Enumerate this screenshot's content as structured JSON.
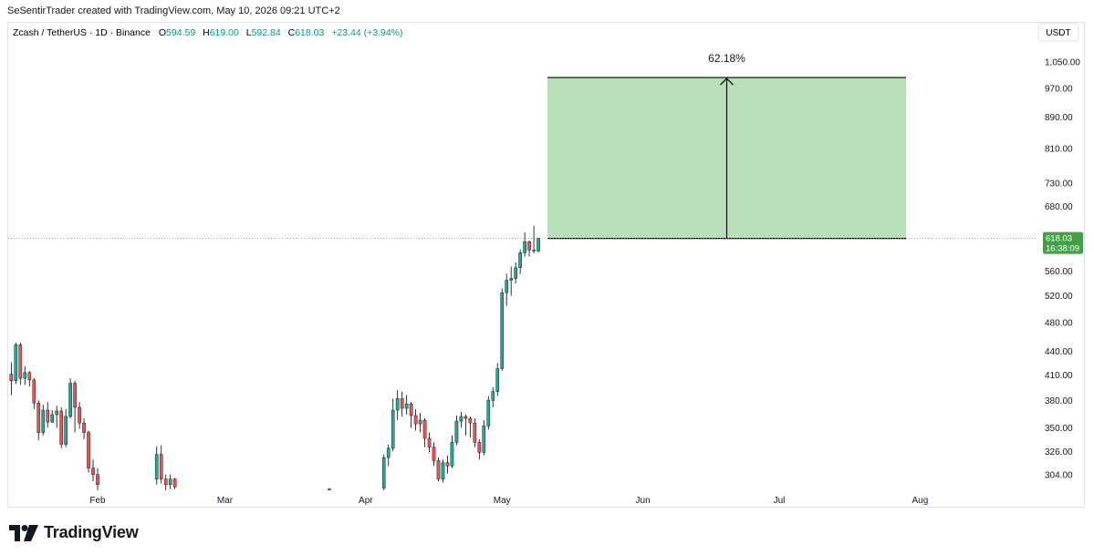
{
  "header": {
    "credit": "SeSentirTrader created with TradingView.com, May 10, 2026 09:21 UTC+2"
  },
  "symbol_bar": {
    "symbol": "Zcash / TetherUS · 1D · Binance",
    "o_label": "O",
    "o_value": "594.59",
    "h_label": "H",
    "h_value": "619.00",
    "l_label": "L",
    "l_value": "592.84",
    "c_label": "C",
    "c_value": "618.03",
    "change": "+23.44 (+3.94%)"
  },
  "currency_badge": "USDT",
  "price_tag": {
    "price": "618.03",
    "countdown": "16:38:09"
  },
  "measure": {
    "label": "62.18%",
    "from": 618.03,
    "to": 1002
  },
  "logo": {
    "text": "TradingView"
  },
  "colors": {
    "up": "#26a69a",
    "down": "#ef5350",
    "wick": "#000000",
    "measure_fill": "#b9dfb9",
    "price_tag": "#43a047"
  },
  "chart_data": {
    "type": "candlestick",
    "scale": "log",
    "ylim": [
      290,
      1085
    ],
    "x_axis_labels": [
      "Feb",
      "Mar",
      "Apr",
      "May",
      "Jun",
      "Jul",
      "Aug"
    ],
    "y_axis_labels": [
      "1,050.00",
      "970.00",
      "890.00",
      "810.00",
      "730.00",
      "680.00",
      "560.00",
      "520.00",
      "480.00",
      "440.00",
      "410.00",
      "380.00",
      "350.00",
      "326.00",
      "304.00"
    ],
    "last_price": 618.03,
    "candles": [
      {
        "date": "2026-01-13",
        "o": 411,
        "h": 426,
        "l": 386,
        "c": 403
      },
      {
        "date": "2026-01-14",
        "o": 403,
        "h": 452,
        "l": 399,
        "c": 449
      },
      {
        "date": "2026-01-15",
        "o": 449,
        "h": 452,
        "l": 398,
        "c": 406
      },
      {
        "date": "2026-01-16",
        "o": 406,
        "h": 421,
        "l": 398,
        "c": 413
      },
      {
        "date": "2026-01-17",
        "o": 413,
        "h": 415,
        "l": 396,
        "c": 404
      },
      {
        "date": "2026-01-18",
        "o": 404,
        "h": 406,
        "l": 370,
        "c": 377
      },
      {
        "date": "2026-01-19",
        "o": 377,
        "h": 380,
        "l": 337,
        "c": 345
      },
      {
        "date": "2026-01-20",
        "o": 345,
        "h": 375,
        "l": 342,
        "c": 369
      },
      {
        "date": "2026-01-21",
        "o": 369,
        "h": 378,
        "l": 350,
        "c": 356
      },
      {
        "date": "2026-01-22",
        "o": 356,
        "h": 369,
        "l": 355,
        "c": 364
      },
      {
        "date": "2026-01-23",
        "o": 364,
        "h": 374,
        "l": 350,
        "c": 368
      },
      {
        "date": "2026-01-24",
        "o": 368,
        "h": 372,
        "l": 329,
        "c": 333
      },
      {
        "date": "2026-01-25",
        "o": 333,
        "h": 370,
        "l": 330,
        "c": 362
      },
      {
        "date": "2026-01-26",
        "o": 362,
        "h": 406,
        "l": 360,
        "c": 400
      },
      {
        "date": "2026-01-27",
        "o": 400,
        "h": 403,
        "l": 345,
        "c": 372
      },
      {
        "date": "2026-01-28",
        "o": 372,
        "h": 378,
        "l": 349,
        "c": 355
      },
      {
        "date": "2026-01-29",
        "o": 355,
        "h": 360,
        "l": 338,
        "c": 345
      },
      {
        "date": "2026-01-30",
        "o": 345,
        "h": 347,
        "l": 306,
        "c": 310
      },
      {
        "date": "2026-01-31",
        "o": 310,
        "h": 318,
        "l": 298,
        "c": 304
      },
      {
        "date": "2026-02-01",
        "o": 304,
        "h": 310,
        "l": 290,
        "c": 295
      },
      {
        "date": "2026-02-14",
        "o": 300,
        "h": 331,
        "l": 295,
        "c": 323
      },
      {
        "date": "2026-02-15",
        "o": 323,
        "h": 332,
        "l": 296,
        "c": 300
      },
      {
        "date": "2026-02-16",
        "o": 300,
        "h": 304,
        "l": 290,
        "c": 295
      },
      {
        "date": "2026-02-17",
        "o": 295,
        "h": 304,
        "l": 291,
        "c": 300
      },
      {
        "date": "2026-02-18",
        "o": 300,
        "h": 301,
        "l": 291,
        "c": 293
      },
      {
        "date": "2026-03-24",
        "o": 291,
        "h": 292,
        "l": 290,
        "c": 291
      },
      {
        "date": "2026-04-05",
        "o": 292,
        "h": 323,
        "l": 290,
        "c": 320
      },
      {
        "date": "2026-04-06",
        "o": 320,
        "h": 333,
        "l": 312,
        "c": 329
      },
      {
        "date": "2026-04-07",
        "o": 329,
        "h": 382,
        "l": 326,
        "c": 369
      },
      {
        "date": "2026-04-08",
        "o": 369,
        "h": 392,
        "l": 358,
        "c": 382
      },
      {
        "date": "2026-04-09",
        "o": 382,
        "h": 390,
        "l": 362,
        "c": 371
      },
      {
        "date": "2026-04-10",
        "o": 371,
        "h": 386,
        "l": 364,
        "c": 376
      },
      {
        "date": "2026-04-11",
        "o": 376,
        "h": 378,
        "l": 350,
        "c": 363
      },
      {
        "date": "2026-04-12",
        "o": 363,
        "h": 370,
        "l": 347,
        "c": 354
      },
      {
        "date": "2026-04-13",
        "o": 354,
        "h": 366,
        "l": 345,
        "c": 358
      },
      {
        "date": "2026-04-14",
        "o": 358,
        "h": 360,
        "l": 330,
        "c": 339
      },
      {
        "date": "2026-04-15",
        "o": 339,
        "h": 345,
        "l": 325,
        "c": 330
      },
      {
        "date": "2026-04-16",
        "o": 330,
        "h": 335,
        "l": 312,
        "c": 317
      },
      {
        "date": "2026-04-17",
        "o": 317,
        "h": 320,
        "l": 298,
        "c": 300
      },
      {
        "date": "2026-04-18",
        "o": 300,
        "h": 318,
        "l": 297,
        "c": 315
      },
      {
        "date": "2026-04-19",
        "o": 315,
        "h": 322,
        "l": 305,
        "c": 312
      },
      {
        "date": "2026-04-20",
        "o": 312,
        "h": 342,
        "l": 310,
        "c": 335
      },
      {
        "date": "2026-04-21",
        "o": 335,
        "h": 363,
        "l": 332,
        "c": 357
      },
      {
        "date": "2026-04-22",
        "o": 357,
        "h": 367,
        "l": 350,
        "c": 362
      },
      {
        "date": "2026-04-23",
        "o": 362,
        "h": 364,
        "l": 342,
        "c": 360
      },
      {
        "date": "2026-04-24",
        "o": 360,
        "h": 362,
        "l": 340,
        "c": 355
      },
      {
        "date": "2026-04-25",
        "o": 355,
        "h": 360,
        "l": 330,
        "c": 335
      },
      {
        "date": "2026-04-26",
        "o": 335,
        "h": 338,
        "l": 318,
        "c": 325
      },
      {
        "date": "2026-04-27",
        "o": 325,
        "h": 358,
        "l": 322,
        "c": 352
      },
      {
        "date": "2026-04-28",
        "o": 352,
        "h": 385,
        "l": 348,
        "c": 380
      },
      {
        "date": "2026-04-29",
        "o": 380,
        "h": 395,
        "l": 372,
        "c": 390
      },
      {
        "date": "2026-04-30",
        "o": 390,
        "h": 425,
        "l": 385,
        "c": 418
      },
      {
        "date": "2026-05-01",
        "o": 418,
        "h": 532,
        "l": 415,
        "c": 525
      },
      {
        "date": "2026-05-02",
        "o": 525,
        "h": 556,
        "l": 505,
        "c": 545
      },
      {
        "date": "2026-05-03",
        "o": 545,
        "h": 568,
        "l": 520,
        "c": 548
      },
      {
        "date": "2026-05-04",
        "o": 548,
        "h": 575,
        "l": 540,
        "c": 566
      },
      {
        "date": "2026-05-05",
        "o": 566,
        "h": 598,
        "l": 555,
        "c": 592
      },
      {
        "date": "2026-05-06",
        "o": 592,
        "h": 629,
        "l": 585,
        "c": 612
      },
      {
        "date": "2026-05-07",
        "o": 612,
        "h": 614,
        "l": 585,
        "c": 597
      },
      {
        "date": "2026-05-08",
        "o": 597,
        "h": 642,
        "l": 591,
        "c": 597
      },
      {
        "date": "2026-05-09",
        "o": 595,
        "h": 619,
        "l": 593,
        "c": 618
      }
    ]
  }
}
